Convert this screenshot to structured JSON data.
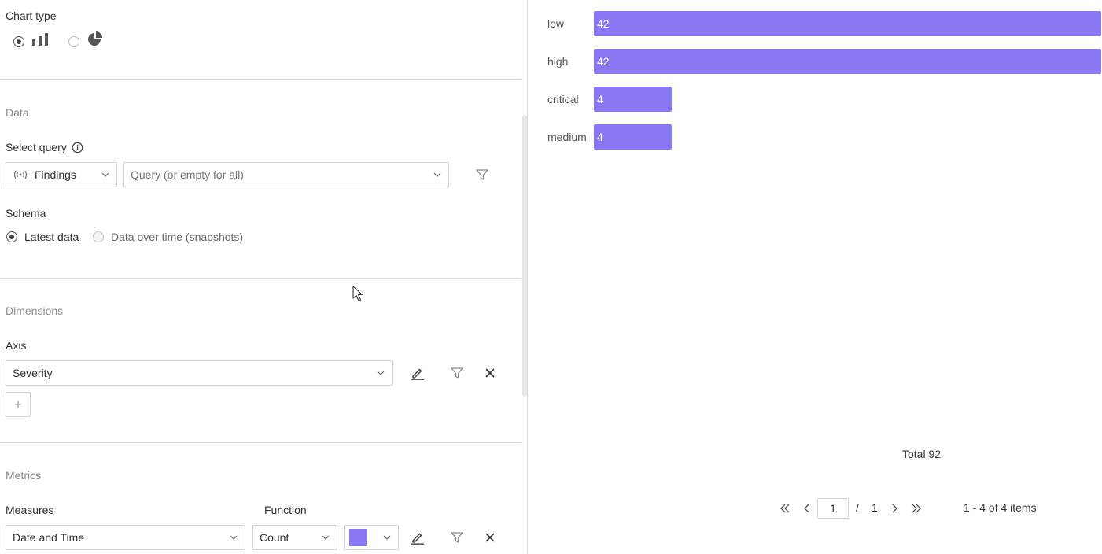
{
  "chart_type": {
    "title": "Chart type",
    "options": [
      {
        "icon": "bar-chart-icon",
        "selected": true
      },
      {
        "icon": "pie-chart-icon",
        "selected": false
      }
    ]
  },
  "data_section": {
    "title": "Data",
    "select_query_label": "Select query",
    "source_value": "Findings",
    "query_placeholder": "Query (or empty for all)",
    "schema_label": "Schema",
    "schema_options": [
      "Latest data",
      "Data over time (snapshots)"
    ],
    "schema_selected": "Latest data"
  },
  "dimensions": {
    "title": "Dimensions",
    "axis_label": "Axis",
    "axis_value": "Severity",
    "add_label": "+"
  },
  "metrics": {
    "title": "Metrics",
    "measures_label": "Measures",
    "function_label": "Function",
    "measure_value": "Date and Time",
    "function_value": "Count",
    "color": "#8878f3"
  },
  "chart_data": {
    "type": "bar",
    "orientation": "horizontal",
    "categories": [
      "low",
      "high",
      "critical",
      "medium"
    ],
    "values": [
      42,
      42,
      4,
      4
    ],
    "bar_color": "#8878f3",
    "xlim": [
      0,
      42
    ]
  },
  "summary": {
    "total_text": "Total 92"
  },
  "pagination": {
    "current_page": "1",
    "separator": "/",
    "total_pages": "1",
    "range_text": "1 - 4 of 4 items"
  }
}
